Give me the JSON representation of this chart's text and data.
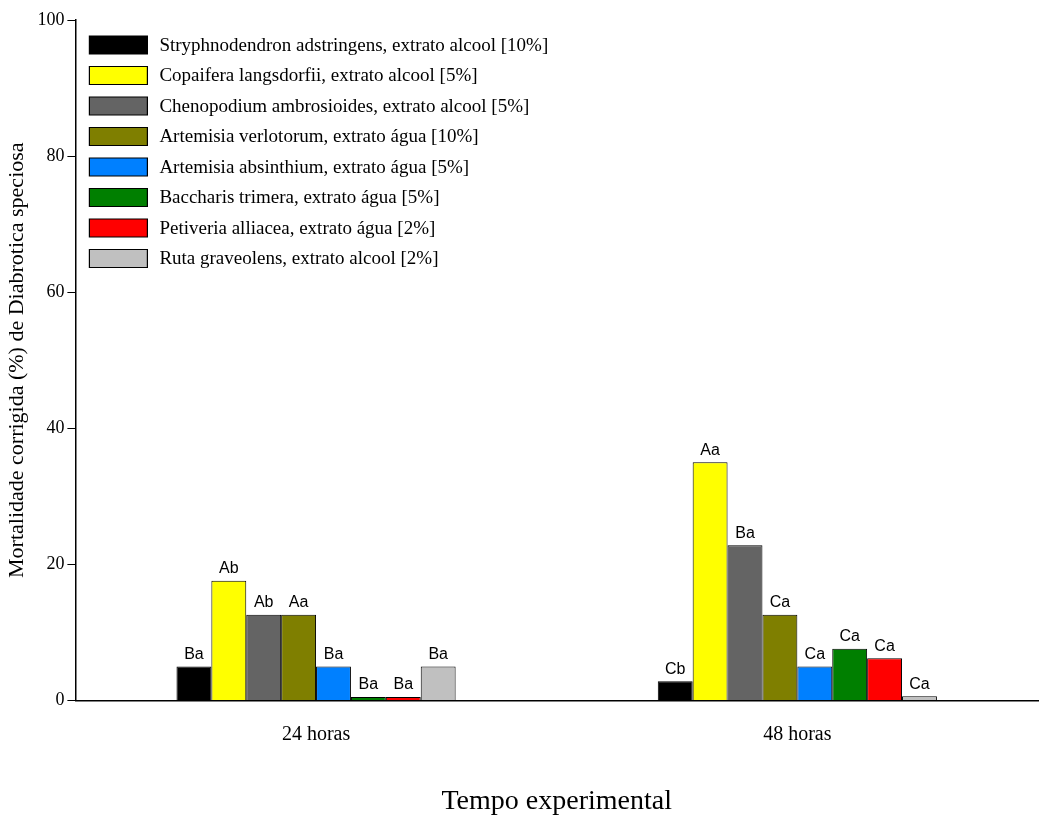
{
  "chart_data": {
    "type": "bar",
    "xlabel": "Tempo experimental",
    "ylabel": "Mortalidade corrigida (%) de Diabrotica speciosa",
    "categories": [
      "24 horas",
      "48 horas"
    ],
    "ylim": [
      0,
      100
    ],
    "yticks": [
      0,
      20,
      40,
      60,
      80,
      100
    ],
    "grid": false,
    "legend": "top left",
    "series": [
      {
        "name": "Stryphnodendron adstringens, extrato alcool [10%]",
        "color": "#000000",
        "values": [
          5.0,
          2.8
        ],
        "value_labels": [
          "Ba",
          "Cb"
        ]
      },
      {
        "name": "Copaifera langsdorfii, extrato alcool [5%]",
        "color": "#ffff00",
        "values": [
          17.6,
          35.0
        ],
        "value_labels": [
          "Ab",
          "Aa"
        ]
      },
      {
        "name": "Chenopodium ambrosioides, extrato alcool [5%]",
        "color": "#646464",
        "values": [
          12.6,
          22.8
        ],
        "value_labels": [
          "Ab",
          "Ba"
        ]
      },
      {
        "name": "Artemisia verlotorum, extrato água [10%]",
        "color": "#7f7f00",
        "values": [
          12.6,
          12.6
        ],
        "value_labels": [
          "Aa",
          "Ca"
        ]
      },
      {
        "name": "Artemisia absinthium, extrato água [5%]",
        "color": "#0080ff",
        "values": [
          5.0,
          5.0
        ],
        "value_labels": [
          "Ba",
          "Ca"
        ]
      },
      {
        "name": "Baccharis trimera, extrato água [5%]",
        "color": "#007f00",
        "values": [
          0.5,
          7.6
        ],
        "value_labels": [
          "Ba",
          "Ca"
        ]
      },
      {
        "name": "Petiveria alliacea, extrato água [2%]",
        "color": "#ff0000",
        "values": [
          0.5,
          6.2
        ],
        "value_labels": [
          "Ba",
          "Ca"
        ]
      },
      {
        "name": "Ruta graveolens, extrato alcool [2%]",
        "color": "#c0c0c0",
        "values": [
          5.0,
          0.6
        ],
        "value_labels": [
          "Ba",
          "Ca"
        ]
      }
    ]
  }
}
